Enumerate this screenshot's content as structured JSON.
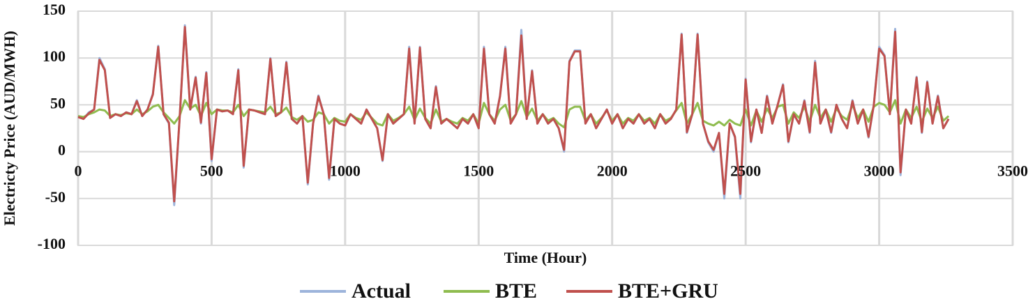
{
  "chart_data": {
    "type": "line",
    "x_label": "Time (Hour)",
    "y_label": "Electricty Price (AUD/MWH)",
    "xlim": [
      0,
      3500
    ],
    "xticks": [
      0,
      500,
      1000,
      1500,
      2000,
      2500,
      3000,
      3500
    ],
    "ylim": [
      -100,
      150
    ],
    "yticks": [
      -100,
      -50,
      0,
      50,
      100,
      150
    ],
    "grid": true,
    "legend": "bottom",
    "x": [
      0,
      20,
      40,
      60,
      80,
      100,
      120,
      140,
      160,
      180,
      200,
      220,
      240,
      260,
      280,
      300,
      320,
      340,
      360,
      380,
      400,
      420,
      440,
      460,
      480,
      500,
      520,
      540,
      560,
      580,
      600,
      620,
      640,
      660,
      680,
      700,
      720,
      740,
      760,
      780,
      800,
      820,
      840,
      860,
      880,
      900,
      920,
      940,
      960,
      980,
      1000,
      1020,
      1040,
      1060,
      1080,
      1100,
      1120,
      1140,
      1160,
      1180,
      1200,
      1220,
      1240,
      1260,
      1280,
      1300,
      1320,
      1340,
      1360,
      1380,
      1400,
      1420,
      1440,
      1460,
      1480,
      1500,
      1520,
      1540,
      1560,
      1580,
      1600,
      1620,
      1640,
      1660,
      1680,
      1700,
      1720,
      1740,
      1760,
      1780,
      1800,
      1820,
      1840,
      1860,
      1880,
      1900,
      1920,
      1940,
      1960,
      1980,
      2000,
      2020,
      2040,
      2060,
      2080,
      2100,
      2120,
      2140,
      2160,
      2180,
      2200,
      2220,
      2240,
      2260,
      2280,
      2300,
      2320,
      2340,
      2360,
      2380,
      2400,
      2420,
      2440,
      2460,
      2480,
      2500,
      2520,
      2540,
      2560,
      2580,
      2600,
      2620,
      2640,
      2660,
      2680,
      2700,
      2720,
      2740,
      2760,
      2780,
      2800,
      2820,
      2840,
      2860,
      2880,
      2900,
      2920,
      2940,
      2960,
      2980,
      3000,
      3020,
      3040,
      3060,
      3080,
      3100,
      3120,
      3140,
      3160,
      3180,
      3200,
      3220,
      3240,
      3260
    ],
    "series": [
      {
        "name": "Actual",
        "color": "#9db4db",
        "values": [
          38,
          35,
          42,
          45,
          100,
          88,
          36,
          40,
          38,
          42,
          40,
          55,
          38,
          45,
          62,
          113,
          40,
          30,
          -57,
          35,
          135,
          45,
          80,
          30,
          85,
          -10,
          45,
          43,
          44,
          40,
          88,
          -17,
          45,
          44,
          42,
          40,
          100,
          38,
          42,
          96,
          35,
          30,
          38,
          -35,
          30,
          60,
          40,
          -30,
          35,
          30,
          28,
          40,
          35,
          30,
          45,
          35,
          25,
          -10,
          40,
          30,
          35,
          40,
          112,
          30,
          112,
          35,
          25,
          70,
          30,
          35,
          30,
          25,
          35,
          30,
          40,
          25,
          112,
          40,
          30,
          60,
          112,
          30,
          40,
          130,
          35,
          87,
          30,
          40,
          30,
          35,
          25,
          0,
          97,
          108,
          108,
          30,
          40,
          25,
          35,
          45,
          30,
          40,
          25,
          35,
          30,
          40,
          30,
          35,
          25,
          40,
          30,
          35,
          45,
          126,
          20,
          40,
          126,
          30,
          10,
          0,
          20,
          -50,
          30,
          15,
          -50,
          78,
          10,
          45,
          20,
          60,
          30,
          50,
          72,
          10,
          40,
          30,
          55,
          20,
          97,
          30,
          45,
          20,
          50,
          35,
          25,
          55,
          30,
          45,
          15,
          50,
          112,
          103,
          40,
          131,
          -25,
          45,
          30,
          80,
          20,
          75,
          30,
          60,
          25,
          35
        ]
      },
      {
        "name": "BTE",
        "color": "#8fbc4f",
        "values": [
          38,
          37,
          40,
          42,
          45,
          44,
          38,
          40,
          39,
          41,
          40,
          45,
          40,
          43,
          48,
          50,
          42,
          36,
          30,
          38,
          55,
          46,
          50,
          38,
          52,
          40,
          45,
          44,
          44,
          42,
          50,
          38,
          45,
          44,
          43,
          42,
          48,
          40,
          42,
          47,
          37,
          34,
          38,
          32,
          34,
          42,
          40,
          30,
          36,
          33,
          32,
          40,
          36,
          34,
          42,
          36,
          30,
          28,
          40,
          33,
          36,
          40,
          48,
          34,
          46,
          36,
          30,
          45,
          32,
          35,
          32,
          30,
          36,
          33,
          40,
          30,
          52,
          40,
          33,
          45,
          50,
          33,
          40,
          54,
          37,
          46,
          33,
          40,
          33,
          36,
          30,
          26,
          45,
          48,
          48,
          33,
          40,
          30,
          36,
          44,
          33,
          40,
          30,
          36,
          33,
          40,
          33,
          36,
          30,
          40,
          33,
          36,
          44,
          52,
          30,
          40,
          52,
          33,
          30,
          28,
          32,
          28,
          34,
          30,
          28,
          45,
          28,
          44,
          32,
          46,
          36,
          48,
          50,
          30,
          42,
          36,
          48,
          32,
          50,
          36,
          45,
          32,
          46,
          38,
          34,
          50,
          36,
          45,
          32,
          48,
          52,
          50,
          42,
          55,
          30,
          45,
          36,
          48,
          32,
          46,
          36,
          48,
          33,
          38
        ]
      },
      {
        "name": "BTE+GRU",
        "color": "#c0504d",
        "values": [
          37,
          35,
          41,
          45,
          98,
          87,
          36,
          40,
          38,
          42,
          40,
          54,
          38,
          45,
          61,
          112,
          40,
          31,
          -53,
          35,
          133,
          45,
          79,
          31,
          84,
          -8,
          45,
          43,
          44,
          40,
          87,
          -15,
          45,
          44,
          42,
          40,
          99,
          38,
          42,
          95,
          35,
          30,
          38,
          -33,
          30,
          59,
          40,
          -28,
          35,
          30,
          28,
          40,
          35,
          30,
          45,
          35,
          25,
          -9,
          40,
          30,
          35,
          40,
          110,
          30,
          111,
          35,
          25,
          69,
          30,
          35,
          30,
          25,
          35,
          30,
          40,
          25,
          110,
          40,
          30,
          59,
          110,
          30,
          40,
          124,
          35,
          86,
          30,
          40,
          30,
          35,
          25,
          2,
          96,
          107,
          107,
          30,
          40,
          25,
          35,
          45,
          30,
          40,
          25,
          35,
          30,
          40,
          30,
          35,
          25,
          40,
          30,
          35,
          45,
          125,
          21,
          40,
          125,
          30,
          11,
          2,
          20,
          -45,
          30,
          16,
          -45,
          77,
          11,
          45,
          20,
          59,
          30,
          50,
          71,
          11,
          40,
          30,
          54,
          21,
          95,
          30,
          45,
          21,
          50,
          35,
          25,
          54,
          30,
          45,
          16,
          50,
          110,
          102,
          40,
          128,
          -22,
          45,
          30,
          79,
          21,
          74,
          30,
          59,
          25,
          35
        ]
      }
    ]
  }
}
